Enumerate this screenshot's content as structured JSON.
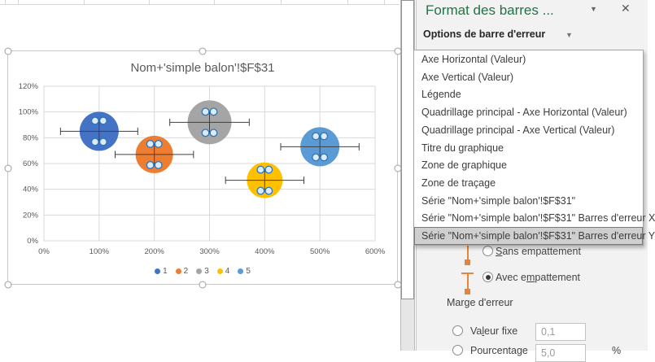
{
  "chart_data": {
    "type": "bubble",
    "title": "Nom+'simple balon'!$F$31",
    "xlim": [
      0,
      600
    ],
    "ylim": [
      0,
      120
    ],
    "x_tick_labels": [
      "0%",
      "100%",
      "200%",
      "300%",
      "400%",
      "500%",
      "600%"
    ],
    "y_tick_labels": [
      "0%",
      "20%",
      "40%",
      "60%",
      "80%",
      "100%",
      "120%"
    ],
    "grid": true,
    "legend_position": "bottom",
    "series": [
      {
        "name": "1",
        "color": "#4472C4",
        "x": 100,
        "y": 85,
        "bubble_radius_px": 24,
        "x_error": 70,
        "y_error": 8
      },
      {
        "name": "2",
        "color": "#ED7D31",
        "x": 200,
        "y": 67,
        "bubble_radius_px": 23,
        "x_error": 71,
        "y_error": 8
      },
      {
        "name": "3",
        "color": "#A5A5A5",
        "x": 300,
        "y": 92,
        "bubble_radius_px": 27,
        "x_error": 72,
        "y_error": 8
      },
      {
        "name": "4",
        "color": "#FFC000",
        "x": 400,
        "y": 47,
        "bubble_radius_px": 22,
        "x_error": 71,
        "y_error": 8
      },
      {
        "name": "5",
        "color": "#5B9BD5",
        "x": 500,
        "y": 73,
        "bubble_radius_px": 24,
        "x_error": 71,
        "y_error": 8
      }
    ],
    "error_bar_color": "#404040",
    "selection_handle_fill": "#ddeaf8",
    "selection_handle_stroke": "#2e75b6"
  },
  "panel": {
    "title": "Format des barres ...",
    "title_dropdown_icon": "▼",
    "close_icon": "✕",
    "section_header": "Options de barre d'erreur",
    "section_dropdown_icon": "▼",
    "element_list": {
      "items": [
        "Axe Horizontal (Valeur)",
        "Axe Vertical (Valeur)",
        "Légende",
        "Quadrillage principal - Axe Horizontal (Valeur)",
        "Quadrillage principal - Axe Vertical (Valeur)",
        "Titre du graphique",
        "Zone de graphique",
        "Zone de traçage",
        "Série \"Nom+'simple balon'!$F$31\"",
        "Série \"Nom+'simple balon'!$F$31\" Barres d'erreur X",
        "Série \"Nom+'simple balon'!$F$31\" Barres d'erreur Y"
      ],
      "selected_index": 10
    },
    "end_style": {
      "sans": {
        "label": "Sans empattement",
        "accel_index": 0,
        "selected": false
      },
      "avec": {
        "label": "Avec empattement",
        "accel_index": 6,
        "selected": true
      }
    },
    "margin": {
      "header": "Marge d'erreur",
      "fixed_label": "Valeur fixe",
      "fixed_accel_index": 2,
      "fixed_value": "0,1",
      "percent_label": "Pourcentage",
      "percent_value": "5,0",
      "percent_sign": "%"
    },
    "accent_green": "#217346",
    "accent_orange": "#ED7D31"
  }
}
